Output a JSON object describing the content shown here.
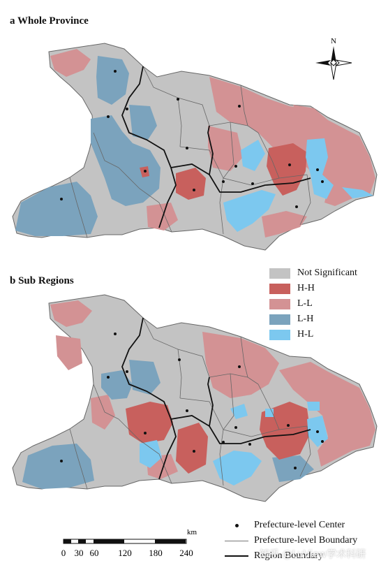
{
  "panels": {
    "a_title": "a Whole Province",
    "b_title": "b Sub Regions"
  },
  "legend": {
    "items": [
      {
        "label": "Not Significant",
        "color": "#c3c3c3"
      },
      {
        "label": "H-H",
        "color": "#c8605d"
      },
      {
        "label": "L-L",
        "color": "#d39294"
      },
      {
        "label": "L-H",
        "color": "#7ba3bd"
      },
      {
        "label": "H-L",
        "color": "#7cc8ef"
      }
    ],
    "symbols": [
      {
        "label": "Prefecture-level Center",
        "kind": "dot"
      },
      {
        "label": "Prefecture-level Boundary",
        "kind": "thin-line"
      },
      {
        "label": "Region Boundary",
        "kind": "thick-line"
      }
    ]
  },
  "north_arrow": {
    "label": "N"
  },
  "scale_bar": {
    "unit": "km",
    "ticks": [
      "0",
      "30",
      "60",
      "120",
      "180",
      "240"
    ]
  },
  "watermark": "知乎 @LuView学术科研"
}
